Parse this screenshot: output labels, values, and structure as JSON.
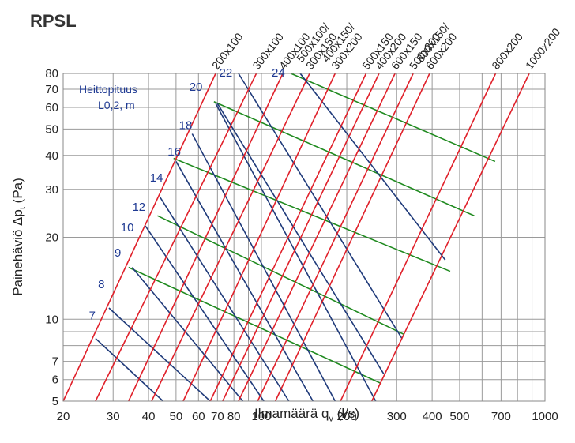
{
  "title": "RPSL",
  "legend": {
    "line1": "Heittopituus",
    "line2": "L0,2, m"
  },
  "xlabel": {
    "main": "Ilmamäärä q",
    "sub": "v",
    "unit": " (l/s)"
  },
  "ylabel": {
    "main": "Painehäviö Δp",
    "sub": "t",
    "unit": " (Pa)"
  },
  "colors": {
    "size_lines": "#e0202a",
    "throw_lines": "#1f3a7a",
    "band_lines": "#1f8a1f",
    "grid": "#9a9a9a",
    "annotation": "#1f3a93"
  },
  "chart_data": {
    "type": "line",
    "title": "RPSL",
    "xlabel": "Ilmamäärä qv (l/s)",
    "ylabel": "Painehäviö Δpt (Pa)",
    "xscale": "log",
    "yscale": "log",
    "xlim": [
      20,
      1000
    ],
    "ylim": [
      5,
      80
    ],
    "grid": true,
    "xticks": [
      20,
      30,
      40,
      50,
      60,
      70,
      80,
      100,
      200,
      300,
      400,
      500,
      700,
      1000
    ],
    "xtick_labels": [
      "20",
      "30",
      "40",
      "50",
      "60",
      "70",
      "80",
      "100",
      "200",
      "300",
      "400",
      "500",
      "700",
      "1000"
    ],
    "yticks": [
      5,
      6,
      7,
      10,
      20,
      30,
      40,
      50,
      60,
      70,
      80
    ],
    "ytick_labels": [
      "5",
      "6",
      "7",
      "10",
      "20",
      "30",
      "40",
      "50",
      "60",
      "70",
      "80"
    ],
    "size_series": [
      {
        "name": "200x100",
        "x": [
          20,
          69
        ],
        "y": [
          5,
          80
        ]
      },
      {
        "name": "300x100",
        "x": [
          26,
          96
        ],
        "y": [
          5,
          80
        ]
      },
      {
        "name": "400x100",
        "x": [
          34,
          119
        ],
        "y": [
          5,
          80
        ]
      },
      {
        "name": "500x100/\n300x150",
        "x": [
          41,
          148
        ],
        "y": [
          5,
          80
        ]
      },
      {
        "name": "400x150/\n300x200",
        "x": [
          53,
          182
        ],
        "y": [
          5,
          80
        ]
      },
      {
        "name": "500x150",
        "x": [
          66,
          234
        ],
        "y": [
          5,
          80
        ]
      },
      {
        "name": "400x200",
        "x": [
          73,
          260
        ],
        "y": [
          5,
          80
        ]
      },
      {
        "name": "600x150",
        "x": [
          83,
          296
        ],
        "y": [
          5,
          80
        ]
      },
      {
        "name": "500x200",
        "x": [
          97,
          343
        ],
        "y": [
          5,
          80
        ]
      },
      {
        "name": "800x150/\n600x200",
        "x": [
          112,
          392
        ],
        "y": [
          5,
          80
        ]
      },
      {
        "name": "800x200",
        "x": [
          190,
          670
        ],
        "y": [
          5,
          80
        ]
      },
      {
        "name": "1000x200",
        "x": [
          245,
          880
        ],
        "y": [
          5,
          80
        ]
      }
    ],
    "throw_series": [
      {
        "name": "7",
        "x": [
          26,
          45
        ],
        "y": [
          8.5,
          5
        ]
      },
      {
        "name": "8",
        "x": [
          29,
          66
        ],
        "y": [
          11,
          5
        ]
      },
      {
        "name": "9",
        "x": [
          35,
          86
        ],
        "y": [
          15.5,
          5
        ]
      },
      {
        "name": "10",
        "x": [
          39,
          102
        ],
        "y": [
          22,
          5
        ]
      },
      {
        "name": "12",
        "x": [
          44,
          125
        ],
        "y": [
          28,
          5
        ]
      },
      {
        "name": "14",
        "x": [
          50,
          152
        ],
        "y": [
          38,
          5
        ]
      },
      {
        "name": "16",
        "x": [
          57,
          182
        ],
        "y": [
          48,
          5
        ]
      },
      {
        "name": "18",
        "x": [
          69,
          253
        ],
        "y": [
          62,
          5
        ]
      },
      {
        "name": "20",
        "x": [
          70,
          270
        ],
        "y": [
          62,
          6.3
        ]
      },
      {
        "name": "22",
        "x": [
          83,
          313
        ],
        "y": [
          80,
          8.5
        ]
      },
      {
        "name": "24",
        "x": [
          137,
          445
        ],
        "y": [
          80,
          16.5
        ]
      }
    ],
    "band_series": [
      {
        "x": [
          34,
          265
        ],
        "y": [
          15.5,
          5.8
        ]
      },
      {
        "x": [
          43,
          318
        ],
        "y": [
          24,
          8.8
        ]
      },
      {
        "x": [
          49,
          463
        ],
        "y": [
          39,
          15
        ]
      },
      {
        "x": [
          68,
          563
        ],
        "y": [
          63,
          24
        ]
      },
      {
        "x": [
          127,
          667
        ],
        "y": [
          80,
          38
        ]
      }
    ],
    "throw_label_positions": [
      {
        "label": "7",
        "x": 26,
        "y": 10
      },
      {
        "label": "8",
        "x": 28,
        "y": 13
      },
      {
        "label": "9",
        "x": 32,
        "y": 17
      },
      {
        "label": "10",
        "x": 35.5,
        "y": 21
      },
      {
        "label": "12",
        "x": 39,
        "y": 25
      },
      {
        "label": "14",
        "x": 45,
        "y": 32
      },
      {
        "label": "16",
        "x": 52,
        "y": 40
      },
      {
        "label": "18",
        "x": 57,
        "y": 50
      },
      {
        "label": "20",
        "x": 62,
        "y": 69
      },
      {
        "label": "22",
        "x": 79,
        "y": 78
      },
      {
        "label": "24",
        "x": 121,
        "y": 78
      }
    ]
  }
}
